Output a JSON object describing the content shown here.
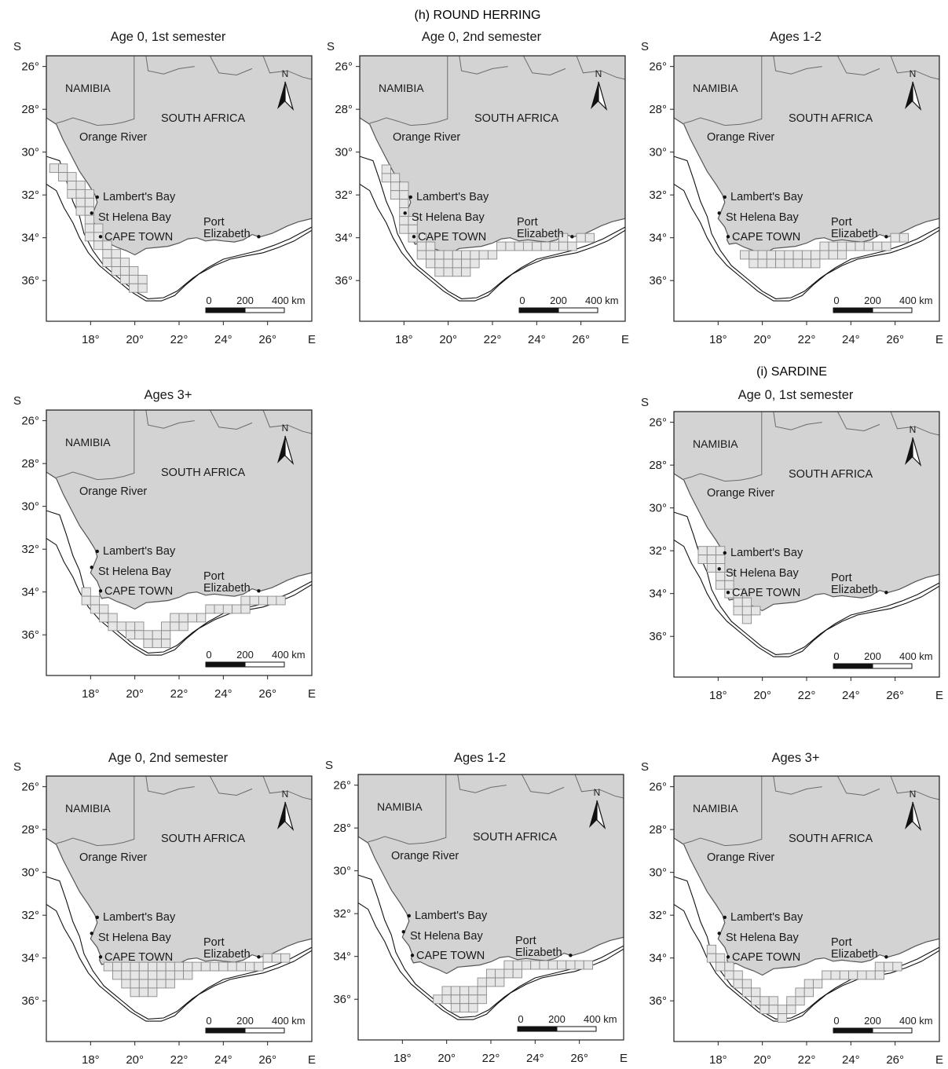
{
  "figure": {
    "titles": {
      "h": "(h) ROUND HERRING",
      "i": "(i) SARDINE"
    },
    "labels": {
      "namibia": "NAMIBIA",
      "south_africa": "SOUTH AFRICA",
      "orange_river": "Orange River",
      "lamberts_bay": "Lambert's Bay",
      "st_helena_bay": "St Helena Bay",
      "cape_town": "CAPE TOWN",
      "port": "Port",
      "elizabeth": "Elizabeth",
      "north": "N",
      "south_axis": "S",
      "east_axis": "E"
    },
    "scale_bar": {
      "tick_0": "0",
      "tick_200": "200",
      "tick_400": "400 km"
    },
    "lat_ticks": [
      "26°",
      "28°",
      "30°",
      "32°",
      "34°",
      "36°"
    ],
    "lon_ticks": [
      "18°",
      "20°",
      "22°",
      "24°",
      "26°"
    ],
    "colors": {
      "land": "#d3d3d3",
      "ocean": "#ffffff",
      "grid_cell_fill": "#e6e6e6",
      "grid_cell_stroke": "#8a8a8a",
      "coast": "#555555",
      "isobath": "#111111"
    }
  },
  "panels": [
    {
      "id": "h-age0-s1",
      "species": "ROUND HERRING",
      "title": "Age 0, 1st semester",
      "cells": [
        [
          16.15,
          -30.55
        ],
        [
          16.55,
          -30.55
        ],
        [
          16.55,
          -30.95
        ],
        [
          16.95,
          -30.95
        ],
        [
          16.95,
          -31.35
        ],
        [
          16.95,
          -31.75
        ],
        [
          17.35,
          -31.35
        ],
        [
          17.35,
          -31.75
        ],
        [
          17.35,
          -32.15
        ],
        [
          17.35,
          -32.55
        ],
        [
          17.75,
          -31.75
        ],
        [
          17.75,
          -32.15
        ],
        [
          17.75,
          -32.55
        ],
        [
          17.75,
          -32.95
        ],
        [
          17.75,
          -33.35
        ],
        [
          18.15,
          -33.35
        ],
        [
          17.75,
          -33.75
        ],
        [
          18.15,
          -33.75
        ],
        [
          18.15,
          -34.15
        ],
        [
          18.55,
          -34.15
        ],
        [
          18.55,
          -34.55
        ],
        [
          18.95,
          -34.55
        ],
        [
          18.55,
          -34.95
        ],
        [
          18.95,
          -34.95
        ],
        [
          19.35,
          -34.95
        ],
        [
          18.95,
          -35.35
        ],
        [
          19.35,
          -35.35
        ],
        [
          19.75,
          -35.35
        ],
        [
          19.35,
          -35.75
        ],
        [
          19.75,
          -35.75
        ],
        [
          20.15,
          -35.75
        ],
        [
          19.75,
          -36.15
        ],
        [
          20.15,
          -36.15
        ]
      ]
    },
    {
      "id": "h-age0-s2",
      "species": "ROUND HERRING",
      "title": "Age 0, 2nd semester",
      "cells": [
        [
          17.0,
          -30.6
        ],
        [
          17.0,
          -31.0
        ],
        [
          17.4,
          -31.0
        ],
        [
          17.4,
          -31.4
        ],
        [
          17.4,
          -31.8
        ],
        [
          17.8,
          -31.4
        ],
        [
          17.8,
          -31.8
        ],
        [
          17.8,
          -32.2
        ],
        [
          17.8,
          -32.6
        ],
        [
          17.8,
          -33.0
        ],
        [
          18.2,
          -33.0
        ],
        [
          17.8,
          -33.4
        ],
        [
          18.2,
          -33.4
        ],
        [
          18.2,
          -33.8
        ],
        [
          18.6,
          -33.8
        ],
        [
          18.6,
          -34.2
        ],
        [
          19.0,
          -34.2
        ],
        [
          18.6,
          -34.6
        ],
        [
          19.0,
          -34.6
        ],
        [
          19.4,
          -34.6
        ],
        [
          19.8,
          -34.6
        ],
        [
          20.2,
          -34.6
        ],
        [
          20.6,
          -34.6
        ],
        [
          21.0,
          -34.6
        ],
        [
          21.4,
          -34.6
        ],
        [
          21.8,
          -34.6
        ],
        [
          19.0,
          -35.0
        ],
        [
          19.4,
          -35.0
        ],
        [
          19.8,
          -35.0
        ],
        [
          20.2,
          -35.0
        ],
        [
          20.6,
          -35.0
        ],
        [
          21.0,
          -35.0
        ],
        [
          19.4,
          -35.4
        ],
        [
          19.8,
          -35.4
        ],
        [
          20.2,
          -35.4
        ],
        [
          20.6,
          -35.4
        ],
        [
          22.2,
          -34.2
        ],
        [
          22.6,
          -34.2
        ],
        [
          23.0,
          -34.2
        ],
        [
          23.4,
          -34.2
        ],
        [
          23.8,
          -34.2
        ],
        [
          24.2,
          -34.2
        ],
        [
          24.6,
          -34.2
        ],
        [
          25.0,
          -34.2
        ],
        [
          25.4,
          -34.2
        ],
        [
          25.0,
          -33.8
        ],
        [
          25.8,
          -33.8
        ],
        [
          26.2,
          -33.8
        ]
      ]
    },
    {
      "id": "h-age12",
      "species": "ROUND HERRING",
      "title": "Ages 1-2",
      "cells": [
        [
          19.0,
          -34.6
        ],
        [
          19.4,
          -34.6
        ],
        [
          19.8,
          -34.6
        ],
        [
          20.2,
          -34.6
        ],
        [
          20.6,
          -34.6
        ],
        [
          21.0,
          -34.6
        ],
        [
          21.4,
          -34.6
        ],
        [
          21.8,
          -34.6
        ],
        [
          22.2,
          -34.6
        ],
        [
          19.4,
          -35.0
        ],
        [
          19.8,
          -35.0
        ],
        [
          20.2,
          -35.0
        ],
        [
          20.6,
          -35.0
        ],
        [
          21.0,
          -35.0
        ],
        [
          21.4,
          -35.0
        ],
        [
          21.8,
          -35.0
        ],
        [
          22.2,
          -35.0
        ],
        [
          22.6,
          -34.6
        ],
        [
          23.0,
          -34.6
        ],
        [
          23.4,
          -34.6
        ],
        [
          22.6,
          -34.2
        ],
        [
          23.0,
          -34.2
        ],
        [
          23.4,
          -34.2
        ],
        [
          23.8,
          -34.2
        ],
        [
          24.2,
          -34.2
        ],
        [
          24.6,
          -34.2
        ],
        [
          25.0,
          -34.2
        ],
        [
          25.4,
          -34.2
        ],
        [
          25.8,
          -33.8
        ],
        [
          26.2,
          -33.8
        ]
      ]
    },
    {
      "id": "h-age3p",
      "species": "ROUND HERRING",
      "title": "Ages 3+",
      "cells": [
        [
          17.6,
          -33.8
        ],
        [
          17.6,
          -34.2
        ],
        [
          18.0,
          -34.2
        ],
        [
          18.0,
          -34.6
        ],
        [
          18.4,
          -34.6
        ],
        [
          18.4,
          -35.0
        ],
        [
          18.8,
          -35.0
        ],
        [
          18.8,
          -35.4
        ],
        [
          19.2,
          -35.4
        ],
        [
          19.6,
          -35.4
        ],
        [
          20.0,
          -35.4
        ],
        [
          19.6,
          -35.8
        ],
        [
          20.0,
          -35.8
        ],
        [
          20.4,
          -35.8
        ],
        [
          20.8,
          -35.8
        ],
        [
          21.2,
          -35.8
        ],
        [
          20.4,
          -36.2
        ],
        [
          20.8,
          -36.2
        ],
        [
          21.2,
          -36.2
        ],
        [
          21.2,
          -35.4
        ],
        [
          21.6,
          -35.4
        ],
        [
          22.0,
          -35.4
        ],
        [
          21.6,
          -35.0
        ],
        [
          22.0,
          -35.0
        ],
        [
          22.4,
          -35.0
        ],
        [
          22.8,
          -35.0
        ],
        [
          23.2,
          -34.6
        ],
        [
          23.6,
          -34.6
        ],
        [
          24.0,
          -34.6
        ],
        [
          24.4,
          -34.6
        ],
        [
          24.8,
          -34.6
        ],
        [
          24.8,
          -34.2
        ],
        [
          25.2,
          -34.2
        ],
        [
          25.6,
          -34.2
        ],
        [
          26.0,
          -34.2
        ],
        [
          26.4,
          -34.2
        ]
      ]
    },
    {
      "id": "i-age0-s1",
      "species": "SARDINE",
      "title": "Age 0, 1st semester",
      "cells": [
        [
          17.1,
          -31.8
        ],
        [
          17.5,
          -31.8
        ],
        [
          17.9,
          -31.8
        ],
        [
          17.1,
          -32.2
        ],
        [
          17.5,
          -32.2
        ],
        [
          17.9,
          -32.2
        ],
        [
          17.5,
          -32.6
        ],
        [
          17.9,
          -32.6
        ],
        [
          17.9,
          -33.0
        ],
        [
          18.3,
          -33.0
        ],
        [
          17.9,
          -33.4
        ],
        [
          18.3,
          -33.4
        ],
        [
          18.3,
          -33.8
        ],
        [
          18.7,
          -33.8
        ],
        [
          18.7,
          -34.2
        ],
        [
          19.1,
          -34.2
        ],
        [
          18.7,
          -34.6
        ],
        [
          19.1,
          -34.6
        ],
        [
          19.5,
          -34.6
        ],
        [
          19.1,
          -35.0
        ]
      ]
    },
    {
      "id": "i-age0-s2",
      "species": "SARDINE",
      "title": "Age 0, 2nd semester",
      "cells": [
        [
          18.6,
          -34.2
        ],
        [
          19.0,
          -34.2
        ],
        [
          19.4,
          -34.2
        ],
        [
          19.8,
          -34.2
        ],
        [
          20.2,
          -34.2
        ],
        [
          20.6,
          -34.2
        ],
        [
          21.0,
          -34.2
        ],
        [
          21.4,
          -34.2
        ],
        [
          21.8,
          -34.2
        ],
        [
          22.2,
          -34.2
        ],
        [
          22.6,
          -34.2
        ],
        [
          23.0,
          -34.2
        ],
        [
          23.4,
          -34.2
        ],
        [
          23.8,
          -34.2
        ],
        [
          24.2,
          -34.2
        ],
        [
          24.6,
          -34.2
        ],
        [
          25.0,
          -34.2
        ],
        [
          25.4,
          -34.2
        ],
        [
          25.8,
          -33.8
        ],
        [
          26.2,
          -33.8
        ],
        [
          26.6,
          -33.8
        ],
        [
          19.0,
          -34.6
        ],
        [
          19.4,
          -34.6
        ],
        [
          19.8,
          -34.6
        ],
        [
          20.2,
          -34.6
        ],
        [
          20.6,
          -34.6
        ],
        [
          21.0,
          -34.6
        ],
        [
          21.4,
          -34.6
        ],
        [
          21.8,
          -34.6
        ],
        [
          22.2,
          -34.6
        ],
        [
          19.4,
          -35.0
        ],
        [
          19.8,
          -35.0
        ],
        [
          20.2,
          -35.0
        ],
        [
          20.6,
          -35.0
        ],
        [
          21.0,
          -35.0
        ],
        [
          21.4,
          -35.0
        ],
        [
          19.8,
          -35.4
        ],
        [
          20.2,
          -35.4
        ],
        [
          20.6,
          -35.4
        ]
      ]
    },
    {
      "id": "i-age12",
      "species": "SARDINE",
      "title": "Ages 1-2",
      "cells": [
        [
          19.8,
          -35.4
        ],
        [
          20.2,
          -35.4
        ],
        [
          20.6,
          -35.4
        ],
        [
          21.0,
          -35.4
        ],
        [
          21.4,
          -35.4
        ],
        [
          19.4,
          -35.8
        ],
        [
          19.8,
          -35.8
        ],
        [
          20.2,
          -35.8
        ],
        [
          20.6,
          -35.8
        ],
        [
          21.0,
          -35.8
        ],
        [
          21.4,
          -35.8
        ],
        [
          20.2,
          -36.2
        ],
        [
          20.6,
          -36.2
        ],
        [
          21.0,
          -36.2
        ],
        [
          21.4,
          -35.0
        ],
        [
          21.8,
          -35.0
        ],
        [
          22.2,
          -35.0
        ],
        [
          21.8,
          -34.6
        ],
        [
          22.2,
          -34.6
        ],
        [
          22.6,
          -34.6
        ],
        [
          23.0,
          -34.6
        ],
        [
          22.6,
          -34.2
        ],
        [
          23.0,
          -34.2
        ],
        [
          23.4,
          -34.2
        ],
        [
          23.8,
          -34.2
        ],
        [
          24.2,
          -34.2
        ],
        [
          24.6,
          -34.2
        ],
        [
          25.0,
          -34.2
        ],
        [
          25.4,
          -34.2
        ],
        [
          25.8,
          -34.2
        ],
        [
          26.2,
          -34.2
        ]
      ]
    },
    {
      "id": "i-age3p",
      "species": "SARDINE",
      "title": "Ages 3+",
      "cells": [
        [
          17.5,
          -33.4
        ],
        [
          17.5,
          -33.8
        ],
        [
          17.9,
          -33.8
        ],
        [
          17.9,
          -34.2
        ],
        [
          18.3,
          -34.2
        ],
        [
          18.3,
          -34.6
        ],
        [
          18.7,
          -34.6
        ],
        [
          18.7,
          -35.0
        ],
        [
          19.1,
          -35.0
        ],
        [
          19.1,
          -35.4
        ],
        [
          19.5,
          -35.4
        ],
        [
          19.5,
          -35.8
        ],
        [
          19.9,
          -35.8
        ],
        [
          20.3,
          -35.8
        ],
        [
          19.9,
          -36.2
        ],
        [
          20.3,
          -36.2
        ],
        [
          20.7,
          -36.2
        ],
        [
          21.1,
          -36.2
        ],
        [
          20.7,
          -36.6
        ],
        [
          21.1,
          -35.8
        ],
        [
          21.5,
          -35.8
        ],
        [
          21.5,
          -35.4
        ],
        [
          21.9,
          -35.4
        ],
        [
          21.9,
          -35.0
        ],
        [
          22.3,
          -35.0
        ],
        [
          22.7,
          -34.6
        ],
        [
          23.1,
          -34.6
        ],
        [
          23.5,
          -34.6
        ],
        [
          23.9,
          -34.6
        ],
        [
          24.3,
          -34.6
        ],
        [
          24.7,
          -34.6
        ],
        [
          25.1,
          -34.6
        ],
        [
          25.1,
          -34.2
        ],
        [
          25.5,
          -34.2
        ],
        [
          25.9,
          -34.2
        ]
      ]
    }
  ]
}
